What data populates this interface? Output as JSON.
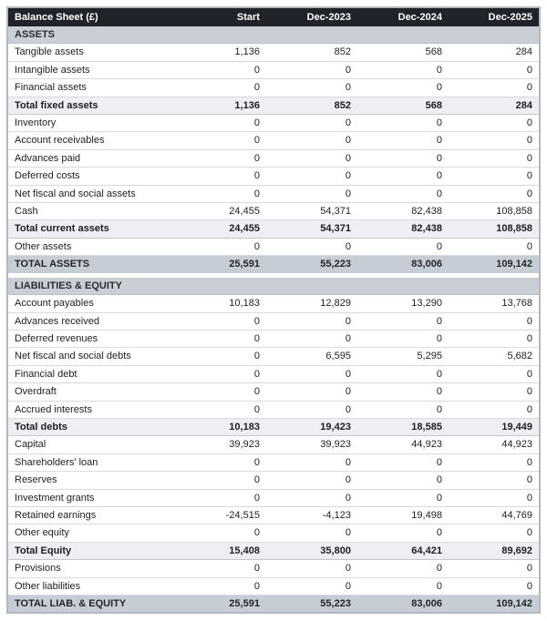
{
  "colors": {
    "header_bg": "#20242a",
    "header_text": "#ffffff",
    "section_bg": "#c9cfd5",
    "subtotal_bg": "#edeff3",
    "total_bg": "#c7cdd4",
    "row_border": "#d9dcdf",
    "outer_border": "#b3b9bf"
  },
  "chart_data": {
    "type": "table",
    "title": "Balance Sheet (£)",
    "columns": [
      "Start",
      "Dec-2023",
      "Dec-2024",
      "Dec-2025"
    ],
    "rows": [
      {
        "type": "section",
        "label": "ASSETS",
        "values": []
      },
      {
        "type": "item",
        "label": "Tangible assets",
        "values": [
          "1,136",
          "852",
          "568",
          "284"
        ]
      },
      {
        "type": "item",
        "label": "Intangible assets",
        "values": [
          "0",
          "0",
          "0",
          "0"
        ]
      },
      {
        "type": "item",
        "label": "Financial assets",
        "values": [
          "0",
          "0",
          "0",
          "0"
        ]
      },
      {
        "type": "subtotal",
        "label": "Total fixed assets",
        "values": [
          "1,136",
          "852",
          "568",
          "284"
        ]
      },
      {
        "type": "item",
        "label": "Inventory",
        "values": [
          "0",
          "0",
          "0",
          "0"
        ]
      },
      {
        "type": "item",
        "label": "Account receivables",
        "values": [
          "0",
          "0",
          "0",
          "0"
        ]
      },
      {
        "type": "item",
        "label": "Advances paid",
        "values": [
          "0",
          "0",
          "0",
          "0"
        ]
      },
      {
        "type": "item",
        "label": "Deferred costs",
        "values": [
          "0",
          "0",
          "0",
          "0"
        ]
      },
      {
        "type": "item",
        "label": "Net fiscal and social assets",
        "values": [
          "0",
          "0",
          "0",
          "0"
        ]
      },
      {
        "type": "item",
        "label": "Cash",
        "values": [
          "24,455",
          "54,371",
          "82,438",
          "108,858"
        ]
      },
      {
        "type": "subtotal",
        "label": "Total current assets",
        "values": [
          "24,455",
          "54,371",
          "82,438",
          "108,858"
        ]
      },
      {
        "type": "item",
        "label": "Other assets",
        "values": [
          "0",
          "0",
          "0",
          "0"
        ]
      },
      {
        "type": "total",
        "label": "TOTAL ASSETS",
        "values": [
          "25,591",
          "55,223",
          "83,006",
          "109,142"
        ]
      },
      {
        "type": "spacer",
        "label": "",
        "values": []
      },
      {
        "type": "section",
        "label": "LIABILITIES & EQUITY",
        "values": []
      },
      {
        "type": "item",
        "label": "Account payables",
        "values": [
          "10,183",
          "12,829",
          "13,290",
          "13,768"
        ]
      },
      {
        "type": "item",
        "label": "Advances received",
        "values": [
          "0",
          "0",
          "0",
          "0"
        ]
      },
      {
        "type": "item",
        "label": "Deferred revenues",
        "values": [
          "0",
          "0",
          "0",
          "0"
        ]
      },
      {
        "type": "item",
        "label": "Net fiscal and social debts",
        "values": [
          "0",
          "6,595",
          "5,295",
          "5,682"
        ]
      },
      {
        "type": "item",
        "label": "Financial debt",
        "values": [
          "0",
          "0",
          "0",
          "0"
        ]
      },
      {
        "type": "item",
        "label": "Overdraft",
        "values": [
          "0",
          "0",
          "0",
          "0"
        ]
      },
      {
        "type": "item",
        "label": "Accrued interests",
        "values": [
          "0",
          "0",
          "0",
          "0"
        ]
      },
      {
        "type": "subtotal",
        "label": "Total debts",
        "values": [
          "10,183",
          "19,423",
          "18,585",
          "19,449"
        ]
      },
      {
        "type": "item",
        "label": "Capital",
        "values": [
          "39,923",
          "39,923",
          "44,923",
          "44,923"
        ]
      },
      {
        "type": "item",
        "label": "Shareholders' loan",
        "values": [
          "0",
          "0",
          "0",
          "0"
        ]
      },
      {
        "type": "item",
        "label": "Reserves",
        "values": [
          "0",
          "0",
          "0",
          "0"
        ]
      },
      {
        "type": "item",
        "label": "Investment grants",
        "values": [
          "0",
          "0",
          "0",
          "0"
        ]
      },
      {
        "type": "item",
        "label": "Retained earnings",
        "values": [
          "-24,515",
          "-4,123",
          "19,498",
          "44,769"
        ]
      },
      {
        "type": "item",
        "label": "Other equity",
        "values": [
          "0",
          "0",
          "0",
          "0"
        ]
      },
      {
        "type": "subtotal",
        "label": "Total Equity",
        "values": [
          "15,408",
          "35,800",
          "64,421",
          "89,692"
        ]
      },
      {
        "type": "item",
        "label": "Provisions",
        "values": [
          "0",
          "0",
          "0",
          "0"
        ]
      },
      {
        "type": "item",
        "label": "Other liabilities",
        "values": [
          "0",
          "0",
          "0",
          "0"
        ]
      },
      {
        "type": "total",
        "label": "TOTAL LIAB. & EQUITY",
        "values": [
          "25,591",
          "55,223",
          "83,006",
          "109,142"
        ]
      }
    ]
  }
}
